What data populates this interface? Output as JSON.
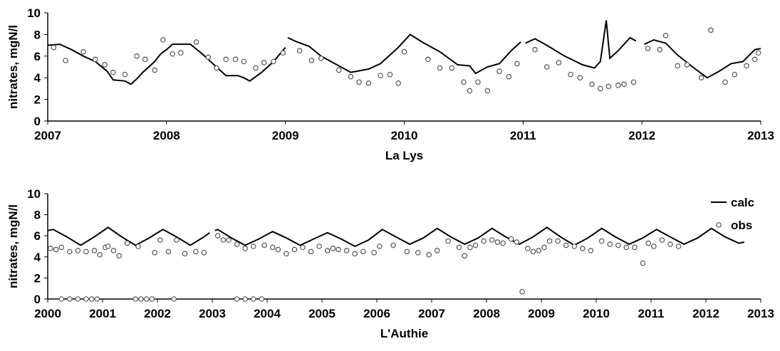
{
  "chart_data": [
    {
      "type": "line",
      "xlabel": "La Lys",
      "ylabel": "nitrates, mgN/l",
      "xlim": [
        2007,
        2013
      ],
      "xticks": [
        2007,
        2008,
        2009,
        2010,
        2011,
        2012,
        2013
      ],
      "ylim": [
        0,
        10
      ],
      "yticks": [
        0,
        2,
        4,
        6,
        8,
        10
      ],
      "series": [
        {
          "name": "calc",
          "kind": "line",
          "color": "#000000",
          "x": [
            2007.0,
            2007.1,
            2007.2,
            2007.3,
            2007.4,
            2007.5,
            2007.55,
            2007.65,
            2007.7,
            2007.75,
            2007.8,
            2007.9,
            2007.95,
            2008.0,
            2008.05,
            2008.15,
            2008.2,
            2008.3,
            2008.4,
            2008.5,
            2008.6,
            2008.65,
            2008.7,
            2008.8,
            2008.9,
            2009.0,
            2009.01,
            2009.02,
            2009.1,
            2009.2,
            2009.3,
            2009.45,
            2009.55,
            2009.7,
            2009.8,
            2009.95,
            2010.05,
            2010.15,
            2010.3,
            2010.45,
            2010.55,
            2010.6,
            2010.7,
            2010.8,
            2010.9,
            2010.98,
            2010.99,
            2011.02,
            2011.1,
            2011.2,
            2011.35,
            2011.5,
            2011.6,
            2011.65,
            2011.7,
            2011.73,
            2011.8,
            2011.9,
            2011.95,
            2011.98,
            2012.02,
            2012.1,
            2012.2,
            2012.3,
            2012.45,
            2012.55,
            2012.65,
            2012.75,
            2012.85,
            2012.95,
            2013.0
          ],
          "values": [
            7.0,
            7.1,
            6.6,
            6.0,
            5.5,
            4.6,
            3.8,
            3.7,
            3.4,
            3.9,
            4.5,
            5.5,
            6.2,
            6.6,
            7.1,
            7.1,
            7.1,
            6.2,
            5.2,
            4.2,
            4.2,
            4.0,
            3.7,
            4.5,
            5.5,
            6.8,
            null,
            7.7,
            7.3,
            6.9,
            6.0,
            5.1,
            4.5,
            4.8,
            5.3,
            6.8,
            8.0,
            7.3,
            6.4,
            5.2,
            5.1,
            4.4,
            5.0,
            5.3,
            6.5,
            7.3,
            null,
            7.2,
            7.6,
            7.0,
            6.0,
            5.2,
            4.9,
            5.5,
            9.3,
            5.8,
            6.5,
            7.7,
            7.4,
            null,
            7.1,
            7.5,
            7.2,
            6.1,
            4.8,
            4.0,
            4.6,
            5.3,
            5.5,
            6.6,
            6.7
          ]
        },
        {
          "name": "obs",
          "kind": "scatter",
          "color": "#555555",
          "x": [
            2007.05,
            2007.15,
            2007.3,
            2007.4,
            2007.48,
            2007.55,
            2007.65,
            2007.75,
            2007.82,
            2007.9,
            2007.97,
            2008.05,
            2008.12,
            2008.25,
            2008.35,
            2008.42,
            2008.5,
            2008.58,
            2008.65,
            2008.75,
            2008.82,
            2008.9,
            2008.98,
            2009.12,
            2009.22,
            2009.3,
            2009.45,
            2009.55,
            2009.62,
            2009.7,
            2009.8,
            2009.88,
            2009.95,
            2010.0,
            2010.2,
            2010.3,
            2010.4,
            2010.5,
            2010.55,
            2010.62,
            2010.7,
            2010.8,
            2010.88,
            2010.95,
            2011.1,
            2011.2,
            2011.3,
            2011.4,
            2011.48,
            2011.58,
            2011.65,
            2011.72,
            2011.8,
            2011.85,
            2011.93,
            2012.05,
            2012.15,
            2012.2,
            2012.3,
            2012.38,
            2012.5,
            2012.58,
            2012.7,
            2012.78,
            2012.88,
            2012.95,
            2012.98
          ],
          "values": [
            6.8,
            5.6,
            6.4,
            5.7,
            5.2,
            4.5,
            4.3,
            6.0,
            5.7,
            4.7,
            7.5,
            6.2,
            6.3,
            7.3,
            5.9,
            4.9,
            5.7,
            5.7,
            5.5,
            4.9,
            5.4,
            5.5,
            6.3,
            6.5,
            5.6,
            5.8,
            4.7,
            4.1,
            3.6,
            3.5,
            4.2,
            4.3,
            3.5,
            6.4,
            5.7,
            4.9,
            4.9,
            3.6,
            2.8,
            3.6,
            2.8,
            4.6,
            4.1,
            5.3,
            6.6,
            5.0,
            5.4,
            4.3,
            4.0,
            3.4,
            3.0,
            3.2,
            3.3,
            3.4,
            3.6,
            6.7,
            6.6,
            7.9,
            5.1,
            5.2,
            4.0,
            8.4,
            3.6,
            4.3,
            5.1,
            5.7,
            6.3
          ]
        }
      ]
    },
    {
      "type": "line",
      "xlabel": "L'Authie",
      "ylabel": "nitrates, mgN/l",
      "legend": "upper right",
      "xlim": [
        2000,
        2013
      ],
      "xticks": [
        2000,
        2001,
        2002,
        2003,
        2004,
        2005,
        2006,
        2007,
        2008,
        2009,
        2010,
        2011,
        2012,
        2013
      ],
      "ylim": [
        0,
        10
      ],
      "yticks": [
        0,
        2,
        4,
        6,
        8,
        10
      ],
      "series": [
        {
          "name": "calc",
          "kind": "line",
          "color": "#000000",
          "x": [
            2000.0,
            2000.1,
            2000.35,
            2000.6,
            2000.85,
            2001.1,
            2001.35,
            2001.6,
            2001.85,
            2002.1,
            2002.35,
            2002.6,
            2002.85,
            2002.95,
            2003.0,
            2003.05,
            2003.1,
            2003.35,
            2003.6,
            2003.85,
            2004.1,
            2004.35,
            2004.6,
            2004.85,
            2005.1,
            2005.35,
            2005.6,
            2005.85,
            2006.1,
            2006.35,
            2006.6,
            2006.85,
            2007.1,
            2007.35,
            2007.6,
            2007.85,
            2008.1,
            2008.35,
            2008.6,
            2008.85,
            2009.1,
            2009.35,
            2009.6,
            2009.85,
            2010.1,
            2010.35,
            2010.6,
            2010.85,
            2011.1,
            2011.35,
            2011.6,
            2011.85,
            2012.1,
            2012.35,
            2012.6,
            2012.7
          ],
          "values": [
            6.5,
            6.6,
            5.9,
            5.1,
            5.9,
            6.8,
            5.9,
            5.1,
            5.8,
            6.6,
            5.9,
            5.1,
            5.9,
            6.3,
            null,
            6.5,
            6.6,
            5.8,
            5.1,
            5.7,
            6.4,
            5.8,
            5.1,
            5.7,
            6.3,
            5.7,
            5.0,
            5.6,
            6.6,
            5.9,
            5.2,
            5.8,
            6.7,
            5.9,
            5.2,
            5.8,
            6.7,
            5.9,
            5.2,
            5.9,
            6.8,
            5.9,
            5.1,
            5.8,
            6.7,
            5.9,
            5.2,
            5.8,
            6.6,
            5.9,
            5.2,
            5.8,
            6.7,
            5.9,
            5.3,
            5.4
          ]
        },
        {
          "name": "obs",
          "kind": "scatter",
          "color": "#555555",
          "x": [
            2000.25,
            2000.4,
            2000.55,
            2000.7,
            2000.8,
            2000.9,
            2001.6,
            2001.7,
            2001.8,
            2001.9,
            2002.3,
            2003.45,
            2003.6,
            2003.75,
            2003.9,
            2000.05,
            2000.15,
            2000.25,
            2000.4,
            2000.55,
            2000.7,
            2000.85,
            2000.95,
            2001.05,
            2001.1,
            2001.2,
            2001.3,
            2001.45,
            2001.65,
            2001.95,
            2002.05,
            2002.2,
            2002.35,
            2002.5,
            2002.7,
            2002.85,
            2003.1,
            2003.2,
            2003.3,
            2003.45,
            2003.6,
            2003.75,
            2003.95,
            2004.1,
            2004.2,
            2004.35,
            2004.5,
            2004.65,
            2004.8,
            2004.95,
            2005.1,
            2005.2,
            2005.3,
            2005.45,
            2005.6,
            2005.75,
            2005.95,
            2006.05,
            2006.3,
            2006.55,
            2006.75,
            2006.95,
            2007.1,
            2007.3,
            2007.5,
            2007.6,
            2007.7,
            2007.8,
            2007.95,
            2008.1,
            2008.2,
            2008.3,
            2008.45,
            2008.55,
            2008.65,
            2008.75,
            2008.85,
            2008.95,
            2009.05,
            2009.15,
            2009.3,
            2009.45,
            2009.6,
            2009.75,
            2009.9,
            2010.1,
            2010.25,
            2010.4,
            2010.55,
            2010.7,
            2010.85,
            2010.95,
            2011.05,
            2011.2,
            2011.35,
            2011.5
          ],
          "values": [
            0,
            0,
            0,
            0,
            0,
            0,
            0,
            0,
            0,
            0,
            0,
            0,
            0,
            0,
            0,
            4.8,
            4.7,
            4.9,
            4.5,
            4.6,
            4.5,
            4.6,
            4.2,
            4.9,
            5.0,
            4.6,
            4.1,
            5.3,
            5.0,
            4.4,
            5.6,
            4.5,
            5.6,
            4.3,
            4.5,
            4.4,
            6.0,
            5.6,
            5.6,
            5.2,
            4.8,
            5.0,
            5.1,
            4.9,
            4.7,
            4.3,
            4.7,
            4.9,
            4.5,
            5.0,
            4.6,
            4.8,
            4.7,
            4.6,
            4.3,
            4.5,
            4.4,
            5.0,
            5.1,
            4.5,
            4.4,
            4.2,
            4.6,
            5.5,
            4.9,
            4.1,
            4.9,
            5.1,
            5.5,
            5.6,
            5.4,
            5.3,
            5.7,
            5.4,
            0.7,
            4.8,
            4.5,
            4.6,
            4.9,
            5.5,
            5.5,
            5.1,
            5.0,
            4.8,
            4.6,
            5.5,
            5.2,
            5.1,
            4.9,
            4.9,
            3.4,
            5.3,
            5.0,
            5.6,
            5.2,
            5.0
          ]
        }
      ]
    }
  ]
}
